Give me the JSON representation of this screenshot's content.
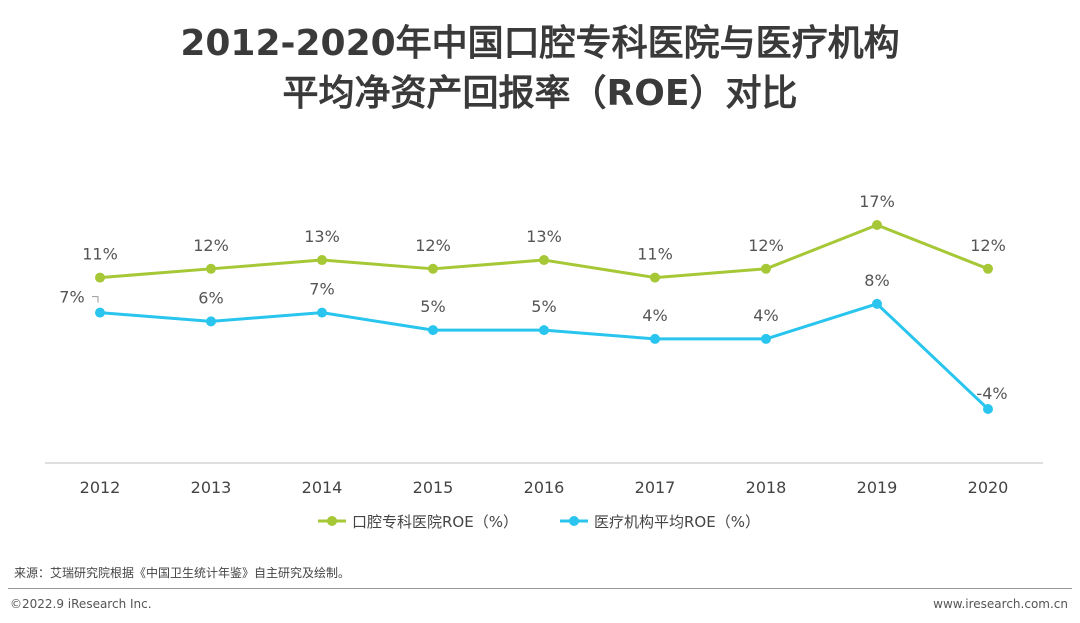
{
  "title_line1": "2012-2020年中国口腔专科医院与医疗机构",
  "title_line2": "平均净资产回报率（ROE）对比",
  "chart_data": {
    "type": "line",
    "x": [
      "2012",
      "2013",
      "2014",
      "2015",
      "2016",
      "2017",
      "2018",
      "2019",
      "2020"
    ],
    "series": [
      {
        "name": "口腔专科医院ROE（%）",
        "color": "#a6c837",
        "values": [
          11,
          12,
          13,
          12,
          13,
          11,
          12,
          17,
          12
        ],
        "labels": [
          "11%",
          "12%",
          "13%",
          "12%",
          "13%",
          "11%",
          "12%",
          "17%",
          "12%"
        ]
      },
      {
        "name": "医疗机构平均ROE（%）",
        "color": "#29c5ee",
        "values": [
          7,
          6,
          7,
          5,
          5,
          4,
          4,
          8,
          -4
        ],
        "labels": [
          "7%",
          "6%",
          "7%",
          "5%",
          "5%",
          "4%",
          "4%",
          "8%",
          "-4%"
        ]
      }
    ],
    "ylim": [
      -10,
      25
    ],
    "grid": false,
    "legend_position": "bottom"
  },
  "footer": {
    "source": "来源：艾瑞研究院根据《中国卫生统计年鉴》自主研究及绘制。",
    "copyright": "©2022.9 iResearch Inc.",
    "website": "www.iresearch.com.cn"
  }
}
